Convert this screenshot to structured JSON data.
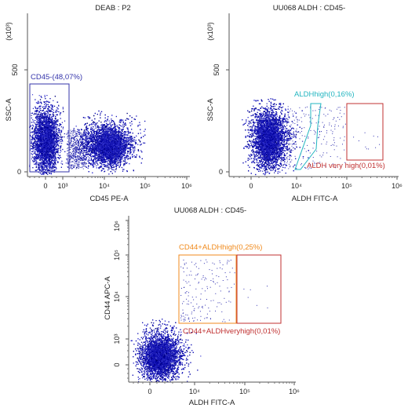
{
  "chart_data": [
    {
      "type": "scatter",
      "title": "DEAB : P2",
      "xlabel": "CD45 PE-A",
      "ylabel": "SSC-A",
      "y_multiplier": "(x10³)",
      "x_scale": "biexponential",
      "x_ticks": [
        "0",
        "10³",
        "10⁴",
        "10⁵",
        "10⁶"
      ],
      "y_ticks": [
        "0",
        "500"
      ],
      "populations": [
        {
          "x_range": [
            "-300",
            "10³"
          ],
          "y_range": [
            30,
            330
          ],
          "approx_fraction": 0.48
        },
        {
          "x_range": [
            "10³",
            "4×10⁴"
          ],
          "y_range": [
            30,
            280
          ],
          "approx_fraction": 0.52
        }
      ],
      "gates": [
        {
          "name": "CD45-",
          "label": "CD45-(48,07%)",
          "percent": 48.07,
          "shape": "rectangle",
          "color": "#3333aa",
          "label_color": "#3333aa"
        }
      ]
    },
    {
      "type": "scatter",
      "title": "UU068 ALDH : CD45-",
      "xlabel": "ALDH FITC-A",
      "ylabel": "SSC-A",
      "y_multiplier": "(x10³)",
      "x_scale": "biexponential",
      "x_ticks": [
        "0",
        "10⁴",
        "10⁵",
        "10⁶"
      ],
      "y_ticks": [
        "0",
        "500"
      ],
      "gates": [
        {
          "name": "ALDHhigh",
          "label": "ALDHhigh(0,16%)",
          "percent": 0.16,
          "shape": "polygon",
          "color": "#22b5c0",
          "label_color": "#22b5c0"
        },
        {
          "name": "ALDH very high",
          "label": "ALDH very high(0,01%)",
          "percent": 0.01,
          "shape": "rectangle",
          "color": "#c03030",
          "label_color": "#c03030"
        }
      ]
    },
    {
      "type": "scatter",
      "title": "UU068 ALDH : CD45-",
      "xlabel": "ALDH FITC-A",
      "ylabel": "CD44 APC-A",
      "x_scale": "biexponential",
      "y_scale": "biexponential",
      "x_ticks": [
        "0",
        "10⁴",
        "10⁵",
        "10⁶"
      ],
      "y_ticks": [
        "0",
        "10³",
        "10⁴",
        "10⁵",
        "10⁶"
      ],
      "gates": [
        {
          "name": "CD44+ALDHhigh",
          "label": "CD44+ALDHhigh(0,25%)",
          "percent": 0.25,
          "shape": "rectangle",
          "color": "#f08a1c",
          "label_color": "#f08a1c"
        },
        {
          "name": "CD44+ALDHveryhigh",
          "label": "CD44+ALDHveryhigh(0,01%)",
          "percent": 0.01,
          "shape": "rectangle",
          "color": "#c03030",
          "label_color": "#c03030"
        }
      ]
    }
  ]
}
